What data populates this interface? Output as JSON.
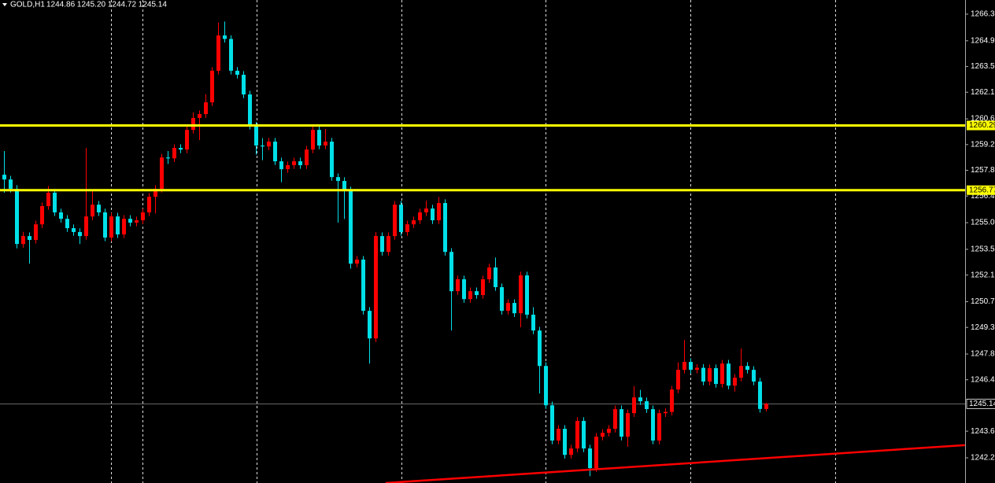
{
  "chart_data": {
    "type": "candlestick",
    "title": "GOLD,H1",
    "quote": "1244.86 1245.20 1244.72 1245.14",
    "up_color": "#ff0000",
    "down_color": "#00e0e8",
    "ylim": [
      1240.83,
      1267.12
    ],
    "yticks": [
      1266.35,
      {
        "value": 1264.9,
        "label": "1264.90"
      },
      {
        "value": 1263.5,
        "label": "1263.50"
      },
      {
        "value": 1262.1,
        "label": "1262.10"
      },
      1260.65,
      1259.25,
      1257.85,
      1256.45,
      {
        "value": 1255.0,
        "label": "1255.00"
      },
      1253.55,
      1252.15,
      {
        "value": 1250.7,
        "label": "1250.70"
      },
      {
        "value": 1249.3,
        "label": "1249.30"
      },
      1247.85,
      1246.45,
      1243.65,
      {
        "value": 1242.2,
        "label": "1242.20"
      }
    ],
    "hlines": [
      {
        "value": 1260.29,
        "color": "#ffff00"
      },
      {
        "value": 1256.77,
        "color": "#ffff00"
      }
    ],
    "last_price": 1245.14,
    "trendline": {
      "x": [
        60.6,
        152.6
      ],
      "values": [
        1240.83,
        1242.89
      ],
      "color": "#ff0000"
    },
    "ohlc": [
      [
        1257.61,
        1258.9,
        1256.63,
        1257.35
      ],
      [
        1257.35,
        1257.55,
        1256.64,
        1256.84
      ],
      [
        1256.84,
        1257.04,
        1253.6,
        1253.84
      ],
      [
        1253.84,
        1254.5,
        1253.64,
        1254.27
      ],
      [
        1254.27,
        1254.47,
        1252.77,
        1254.06
      ],
      [
        1254.06,
        1255.11,
        1253.86,
        1254.91
      ],
      [
        1254.91,
        1256.1,
        1254.71,
        1255.9
      ],
      [
        1255.9,
        1257.0,
        1255.7,
        1256.63
      ],
      [
        1256.63,
        1256.83,
        1255.36,
        1255.56
      ],
      [
        1255.56,
        1255.76,
        1255.01,
        1255.21
      ],
      [
        1255.21,
        1255.41,
        1254.5,
        1254.7
      ],
      [
        1254.7,
        1254.9,
        1254.29,
        1254.49
      ],
      [
        1254.49,
        1254.69,
        1253.84,
        1254.27
      ],
      [
        1254.27,
        1259.07,
        1254.07,
        1255.34
      ],
      [
        1255.34,
        1256.8,
        1255.14,
        1255.98
      ],
      [
        1255.98,
        1256.18,
        1255.36,
        1255.56
      ],
      [
        1255.56,
        1255.76,
        1253.99,
        1254.19
      ],
      [
        1254.19,
        1255.54,
        1253.99,
        1255.34
      ],
      [
        1255.34,
        1255.54,
        1254.16,
        1254.36
      ],
      [
        1254.36,
        1255.41,
        1254.16,
        1255.21
      ],
      [
        1255.21,
        1255.41,
        1254.8,
        1255.0
      ],
      [
        1255.0,
        1255.33,
        1254.8,
        1255.13
      ],
      [
        1255.13,
        1255.76,
        1254.93,
        1255.56
      ],
      [
        1255.56,
        1256.61,
        1255.36,
        1256.41
      ],
      [
        1256.41,
        1257.04,
        1255.5,
        1256.84
      ],
      [
        1256.84,
        1258.75,
        1256.64,
        1258.55
      ],
      [
        1258.55,
        1258.9,
        1258.2,
        1258.5
      ],
      [
        1258.5,
        1259.27,
        1258.3,
        1259.07
      ],
      [
        1259.07,
        1259.27,
        1258.78,
        1258.98
      ],
      [
        1258.98,
        1260.25,
        1258.78,
        1260.05
      ],
      [
        1260.05,
        1261.0,
        1259.85,
        1260.7
      ],
      [
        1260.7,
        1261.11,
        1259.5,
        1260.91
      ],
      [
        1260.91,
        1262.0,
        1260.71,
        1261.55
      ],
      [
        1261.55,
        1263.47,
        1261.35,
        1263.27
      ],
      [
        1263.27,
        1265.9,
        1263.07,
        1265.19
      ],
      [
        1265.19,
        1265.95,
        1264.8,
        1265.0
      ],
      [
        1265.0,
        1265.2,
        1263.07,
        1263.27
      ],
      [
        1263.27,
        1263.47,
        1262.85,
        1263.05
      ],
      [
        1263.05,
        1263.25,
        1261.78,
        1261.98
      ],
      [
        1261.98,
        1262.18,
        1260.07,
        1260.27
      ],
      [
        1260.27,
        1260.47,
        1258.7,
        1259.2
      ],
      [
        1259.2,
        1259.6,
        1258.4,
        1259.15
      ],
      [
        1259.15,
        1259.61,
        1258.95,
        1259.41
      ],
      [
        1259.41,
        1259.61,
        1258.14,
        1258.34
      ],
      [
        1258.34,
        1258.54,
        1257.2,
        1257.91
      ],
      [
        1257.91,
        1258.33,
        1257.71,
        1258.13
      ],
      [
        1258.13,
        1258.54,
        1257.93,
        1258.34
      ],
      [
        1258.34,
        1258.54,
        1257.93,
        1258.13
      ],
      [
        1258.13,
        1259.18,
        1257.93,
        1258.98
      ],
      [
        1258.98,
        1260.25,
        1258.78,
        1260.05
      ],
      [
        1260.05,
        1260.25,
        1259.0,
        1259.2
      ],
      [
        1259.2,
        1260.1,
        1259.0,
        1259.41
      ],
      [
        1259.41,
        1259.61,
        1257.28,
        1257.48
      ],
      [
        1257.48,
        1257.68,
        1255.0,
        1257.27
      ],
      [
        1257.27,
        1257.47,
        1255.2,
        1256.76
      ],
      [
        1256.76,
        1256.96,
        1252.5,
        1252.77
      ],
      [
        1252.77,
        1253.19,
        1252.57,
        1252.99
      ],
      [
        1252.99,
        1253.19,
        1250.0,
        1250.2
      ],
      [
        1250.2,
        1250.4,
        1247.33,
        1248.7
      ],
      [
        1248.7,
        1254.49,
        1248.5,
        1254.27
      ],
      [
        1254.27,
        1254.47,
        1253.21,
        1253.41
      ],
      [
        1253.41,
        1254.47,
        1253.21,
        1254.27
      ],
      [
        1254.27,
        1256.18,
        1254.07,
        1255.98
      ],
      [
        1255.98,
        1256.18,
        1254.29,
        1254.49
      ],
      [
        1254.49,
        1255.11,
        1254.29,
        1254.91
      ],
      [
        1254.91,
        1255.33,
        1254.71,
        1255.13
      ],
      [
        1255.13,
        1255.76,
        1254.93,
        1255.56
      ],
      [
        1255.56,
        1256.2,
        1255.36,
        1255.77
      ],
      [
        1255.77,
        1255.97,
        1254.93,
        1255.13
      ],
      [
        1255.13,
        1256.4,
        1254.93,
        1256.07
      ],
      [
        1256.07,
        1256.27,
        1253.21,
        1253.41
      ],
      [
        1253.41,
        1253.61,
        1249.13,
        1251.27
      ],
      [
        1251.27,
        1252.12,
        1251.07,
        1251.92
      ],
      [
        1251.92,
        1252.12,
        1250.64,
        1250.84
      ],
      [
        1250.84,
        1251.47,
        1250.64,
        1251.27
      ],
      [
        1251.27,
        1251.47,
        1250.86,
        1251.06
      ],
      [
        1251.06,
        1252.12,
        1250.86,
        1251.92
      ],
      [
        1251.92,
        1252.76,
        1251.72,
        1252.56
      ],
      [
        1252.56,
        1253.1,
        1251.29,
        1251.49
      ],
      [
        1251.49,
        1251.69,
        1250.0,
        1250.2
      ],
      [
        1250.2,
        1250.83,
        1250.0,
        1250.63
      ],
      [
        1250.63,
        1250.83,
        1249.87,
        1250.07
      ],
      [
        1250.07,
        1252.33,
        1249.3,
        1252.13
      ],
      [
        1252.13,
        1252.33,
        1249.79,
        1249.99
      ],
      [
        1249.99,
        1250.4,
        1248.93,
        1249.13
      ],
      [
        1249.13,
        1249.33,
        1245.7,
        1247.2
      ],
      [
        1247.2,
        1247.4,
        1244.86,
        1245.06
      ],
      [
        1245.06,
        1245.26,
        1242.94,
        1243.14
      ],
      [
        1243.14,
        1243.98,
        1242.94,
        1243.78
      ],
      [
        1243.78,
        1243.98,
        1242.16,
        1242.36
      ],
      [
        1242.36,
        1242.91,
        1242.16,
        1242.71
      ],
      [
        1242.71,
        1244.41,
        1242.51,
        1244.21
      ],
      [
        1244.21,
        1244.41,
        1242.51,
        1242.71
      ],
      [
        1242.71,
        1242.91,
        1241.2,
        1241.64
      ],
      [
        1241.64,
        1243.55,
        1241.44,
        1243.35
      ],
      [
        1243.35,
        1243.76,
        1243.15,
        1243.56
      ],
      [
        1243.56,
        1243.98,
        1243.36,
        1243.78
      ],
      [
        1243.78,
        1245.05,
        1243.58,
        1244.85
      ],
      [
        1244.85,
        1245.05,
        1243.15,
        1243.35
      ],
      [
        1243.35,
        1244.83,
        1242.8,
        1244.63
      ],
      [
        1244.63,
        1246.1,
        1244.43,
        1245.49
      ],
      [
        1245.49,
        1245.9,
        1245.08,
        1245.28
      ],
      [
        1245.28,
        1245.48,
        1244.65,
        1244.85
      ],
      [
        1244.85,
        1245.05,
        1242.94,
        1243.14
      ],
      [
        1243.14,
        1244.83,
        1242.94,
        1244.63
      ],
      [
        1244.63,
        1244.9,
        1244.43,
        1244.7
      ],
      [
        1244.7,
        1246.12,
        1244.5,
        1245.92
      ],
      [
        1245.92,
        1247.4,
        1245.72,
        1246.99
      ],
      [
        1246.99,
        1248.62,
        1246.79,
        1247.42
      ],
      [
        1247.42,
        1247.62,
        1246.79,
        1246.99
      ],
      [
        1246.99,
        1247.3,
        1246.79,
        1247.1
      ],
      [
        1247.1,
        1247.3,
        1246.15,
        1246.35
      ],
      [
        1246.35,
        1247.28,
        1246.15,
        1247.08
      ],
      [
        1247.08,
        1247.28,
        1246.02,
        1246.22
      ],
      [
        1246.22,
        1247.53,
        1246.02,
        1247.33
      ],
      [
        1247.33,
        1247.53,
        1245.93,
        1246.13
      ],
      [
        1246.13,
        1246.76,
        1245.8,
        1246.56
      ],
      [
        1246.56,
        1248.15,
        1246.36,
        1247.2
      ],
      [
        1247.2,
        1247.4,
        1246.79,
        1246.99
      ],
      [
        1246.99,
        1247.19,
        1246.15,
        1246.35
      ],
      [
        1246.35,
        1246.55,
        1244.66,
        1244.86
      ],
      [
        1244.86,
        1245.2,
        1244.72,
        1245.14
      ]
    ]
  }
}
